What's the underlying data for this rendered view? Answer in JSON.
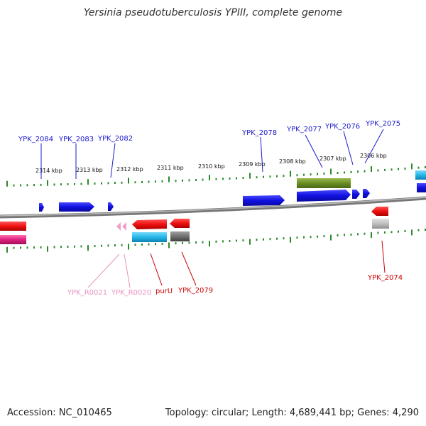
{
  "title": "Yersinia pseudotuberculosis YPIII, complete genome",
  "footer": {
    "accession": "Accession: NC_010465",
    "topology": "Topology: circular; Length: 4,689,441 bp; Genes: 4,290"
  },
  "ruler_upper": {
    "unit": "kbp",
    "ticks": [
      {
        "label": "2314 kbp"
      },
      {
        "label": "2313 kbp"
      },
      {
        "label": "2312 kbp"
      },
      {
        "label": "2311 kbp"
      },
      {
        "label": "2310 kbp"
      },
      {
        "label": "2309 kbp"
      },
      {
        "label": "2308 kbp"
      },
      {
        "label": "2307 kbp"
      },
      {
        "label": "2306 kbp"
      }
    ]
  },
  "gene_labels": {
    "forward": [
      {
        "name": "YPK_2084",
        "color": "#1a1acc"
      },
      {
        "name": "YPK_2083",
        "color": "#1a1acc"
      },
      {
        "name": "YPK_2082",
        "color": "#1a1acc"
      },
      {
        "name": "YPK_2078",
        "color": "#1a1acc"
      },
      {
        "name": "YPK_2077",
        "color": "#1a1acc"
      },
      {
        "name": "YPK_2076",
        "color": "#1a1acc"
      },
      {
        "name": "YPK_2075",
        "color": "#1a1acc"
      }
    ],
    "reverse": [
      {
        "name": "YPK_R0021",
        "color": "#e890c0"
      },
      {
        "name": "YPK_R0020",
        "color": "#e890c0"
      },
      {
        "name": "purU",
        "color": "#cc0000"
      },
      {
        "name": "YPK_2079",
        "color": "#cc0000"
      },
      {
        "name": "YPK_2074",
        "color": "#cc0000"
      }
    ]
  },
  "colors": {
    "forward_gene": "#1010e0",
    "reverse_gene": "#ee1111",
    "rna_gene": "#f0a0c8",
    "feature_cyan": "#22b8e8",
    "feature_olive": "#6b8e23",
    "feature_magenta": "#e0207f",
    "pseudogene_gray": "#707070",
    "tick_green": "#2a8a2a",
    "backbone": "#888888"
  }
}
